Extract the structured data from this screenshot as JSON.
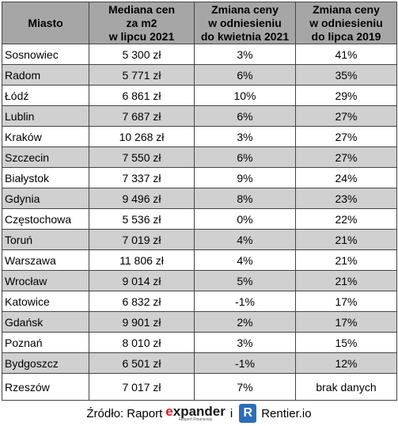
{
  "table": {
    "headers": [
      [
        "Miasto"
      ],
      [
        "Mediana cen",
        "za m2",
        "w lipcu 2021"
      ],
      [
        "Zmiana ceny",
        "w odniesieniu",
        "do kwietnia 2021"
      ],
      [
        "Zmiana ceny",
        "w odniesieniu",
        "do lipca 2019"
      ]
    ],
    "rows": [
      [
        "Sosnowiec",
        "5 300 zł",
        "3%",
        "41%"
      ],
      [
        "Radom",
        "5 771 zł",
        "6%",
        "35%"
      ],
      [
        "Łódź",
        "6 861 zł",
        "10%",
        "29%"
      ],
      [
        "Lublin",
        "7 687 zł",
        "6%",
        "27%"
      ],
      [
        "Kraków",
        "10 268 zł",
        "3%",
        "27%"
      ],
      [
        "Szczecin",
        "7 550 zł",
        "6%",
        "27%"
      ],
      [
        "Białystok",
        "7 337 zł",
        "9%",
        "24%"
      ],
      [
        "Gdynia",
        "9 496 zł",
        "8%",
        "23%"
      ],
      [
        "Częstochowa",
        "5 536 zł",
        "0%",
        "22%"
      ],
      [
        "Toruń",
        "7 019 zł",
        "4%",
        "21%"
      ],
      [
        "Warszawa",
        "11 806 zł",
        "4%",
        "21%"
      ],
      [
        "Wrocław",
        "9 014 zł",
        "5%",
        "21%"
      ],
      [
        "Katowice",
        "6 832 zł",
        "-1%",
        "17%"
      ],
      [
        "Gdańsk",
        "9 901 zł",
        "2%",
        "17%"
      ],
      [
        "Poznań",
        "8 010 zł",
        "3%",
        "15%"
      ],
      [
        "Bydgoszcz",
        "6 501 zł",
        "-1%",
        "12%"
      ],
      [
        "Rzeszów",
        "7 017 zł",
        "7%",
        "brak danych"
      ]
    ]
  },
  "footer": {
    "source_label": "Źródło: Raport",
    "expander_prefix": "e",
    "expander_rest": "xpander",
    "expander_tagline": "Ekspert Finansowy",
    "conjunction": "i",
    "rentier_icon_letter": "R",
    "rentier_text": "Rentier.io"
  },
  "colors": {
    "header_bg": "#a6a6a6",
    "alt_row_bg": "#d0d0d0",
    "expander_accent": "#d71920",
    "rentier_blue": "#2c6fb7"
  }
}
